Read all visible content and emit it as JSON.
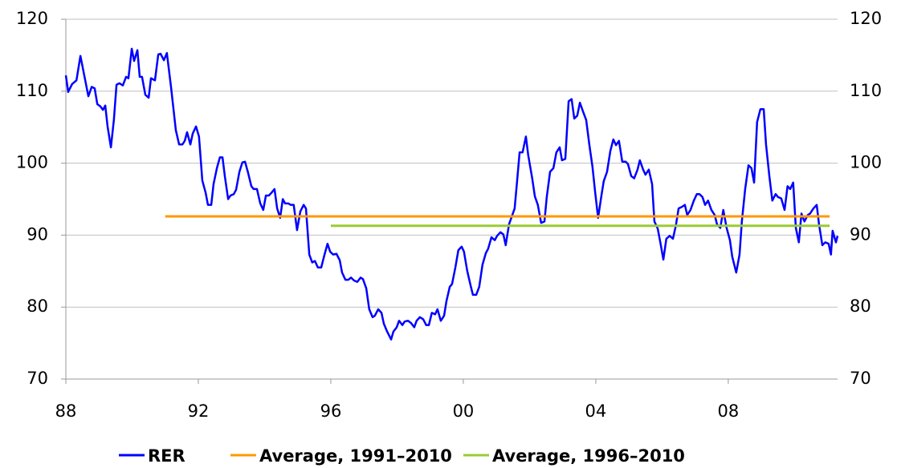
{
  "chart_data": {
    "type": "line",
    "xlim": [
      1988,
      2011.3
    ],
    "xticks": [
      {
        "value": 1988,
        "label": "88"
      },
      {
        "value": 1992,
        "label": "92"
      },
      {
        "value": 1996,
        "label": "96"
      },
      {
        "value": 2000,
        "label": "00"
      },
      {
        "value": 2004,
        "label": "04"
      },
      {
        "value": 2008,
        "label": "08"
      }
    ],
    "ylim": [
      70,
      120
    ],
    "yticks": [
      70,
      80,
      90,
      100,
      110,
      120
    ],
    "y2lim": [
      70,
      120
    ],
    "y2ticks": [
      70,
      80,
      90,
      100,
      110,
      120
    ],
    "grid": true,
    "legend": "bottom",
    "series": [
      {
        "name": "RER",
        "color": "#0000ff",
        "x": [
          1988.0,
          1988.07,
          1988.19,
          1988.32,
          1988.44,
          1988.56,
          1988.68,
          1988.78,
          1988.87,
          1988.95,
          1989.04,
          1989.12,
          1989.19,
          1989.26,
          1989.36,
          1989.45,
          1989.53,
          1989.62,
          1989.72,
          1989.82,
          1989.89,
          1989.99,
          1990.06,
          1990.16,
          1990.23,
          1990.3,
          1990.4,
          1990.5,
          1990.57,
          1990.69,
          1990.79,
          1990.86,
          1990.96,
          1991.05,
          1991.18,
          1991.32,
          1991.42,
          1991.52,
          1991.59,
          1991.66,
          1991.76,
          1991.83,
          1991.93,
          1992.02,
          1992.12,
          1992.22,
          1992.29,
          1992.39,
          1992.46,
          1992.56,
          1992.65,
          1992.73,
          1992.8,
          1992.9,
          1992.97,
          1993.07,
          1993.14,
          1993.24,
          1993.33,
          1993.41,
          1993.5,
          1993.6,
          1993.67,
          1993.77,
          1993.87,
          1993.96,
          1994.04,
          1994.13,
          1994.21,
          1994.3,
          1994.38,
          1994.47,
          1994.55,
          1994.62,
          1994.72,
          1994.79,
          1994.88,
          1994.98,
          1995.08,
          1995.18,
          1995.25,
          1995.35,
          1995.44,
          1995.52,
          1995.61,
          1995.71,
          1995.81,
          1995.9,
          1995.98,
          1996.07,
          1996.17,
          1996.27,
          1996.34,
          1996.44,
          1996.53,
          1996.61,
          1996.7,
          1996.8,
          1996.9,
          1996.97,
          1997.07,
          1997.16,
          1997.26,
          1997.33,
          1997.43,
          1997.53,
          1997.6,
          1997.7,
          1997.82,
          1997.89,
          1997.99,
          1998.06,
          1998.16,
          1998.23,
          1998.33,
          1998.42,
          1998.52,
          1998.59,
          1998.69,
          1998.79,
          1998.88,
          1998.96,
          1999.05,
          1999.15,
          1999.22,
          1999.32,
          1999.42,
          1999.49,
          1999.59,
          1999.66,
          1999.76,
          1999.85,
          1999.95,
          2000.02,
          2000.12,
          2000.22,
          2000.29,
          2000.39,
          2000.48,
          2000.58,
          2000.68,
          2000.75,
          2000.85,
          2000.95,
          2001.02,
          2001.12,
          2001.21,
          2001.28,
          2001.38,
          2001.45,
          2001.55,
          2001.62,
          2001.7,
          2001.79,
          2001.89,
          2001.96,
          2002.08,
          2002.16,
          2002.25,
          2002.35,
          2002.45,
          2002.52,
          2002.62,
          2002.72,
          2002.81,
          2002.91,
          2002.98,
          2003.08,
          2003.18,
          2003.27,
          2003.35,
          2003.44,
          2003.52,
          2003.62,
          2003.71,
          2003.81,
          2003.9,
          2003.98,
          2004.07,
          2004.17,
          2004.24,
          2004.34,
          2004.44,
          2004.53,
          2004.61,
          2004.7,
          2004.8,
          2004.9,
          2004.97,
          2005.07,
          2005.16,
          2005.26,
          2005.33,
          2005.43,
          2005.5,
          2005.6,
          2005.7,
          2005.77,
          2005.87,
          2005.96,
          2006.04,
          2006.13,
          2006.23,
          2006.33,
          2006.42,
          2006.5,
          2006.59,
          2006.69,
          2006.76,
          2006.86,
          2006.96,
          2007.05,
          2007.13,
          2007.22,
          2007.3,
          2007.39,
          2007.49,
          2007.59,
          2007.66,
          2007.76,
          2007.85,
          2007.95,
          2008.05,
          2008.12,
          2008.24,
          2008.34,
          2008.41,
          2008.51,
          2008.61,
          2008.7,
          2008.78,
          2008.87,
          2008.97,
          2009.07,
          2009.14,
          2009.24,
          2009.33,
          2009.43,
          2009.5,
          2009.6,
          2009.7,
          2009.79,
          2009.87,
          2009.96,
          2010.04,
          2010.13,
          2010.21,
          2010.3,
          2010.4,
          2010.47,
          2010.57,
          2010.67,
          2010.74,
          2010.84,
          2010.93,
          2011.03,
          2011.1,
          2011.15,
          2011.25,
          2011.3
        ],
        "values": [
          112.2,
          109.9,
          111.0,
          111.5,
          114.9,
          112.1,
          109.3,
          110.6,
          110.4,
          108.2,
          107.9,
          107.4,
          108.0,
          105.1,
          102.2,
          106.0,
          110.9,
          111.1,
          110.8,
          112.0,
          111.8,
          115.9,
          114.2,
          115.7,
          112.0,
          112.0,
          109.5,
          109.1,
          111.8,
          111.5,
          115.1,
          115.2,
          114.3,
          115.3,
          110.4,
          104.6,
          102.6,
          102.6,
          103.1,
          104.3,
          102.6,
          104.1,
          105.1,
          103.7,
          97.6,
          95.9,
          94.2,
          94.2,
          97.1,
          99.3,
          100.8,
          100.8,
          98.2,
          95.0,
          95.5,
          95.7,
          96.3,
          98.8,
          100.1,
          100.2,
          98.7,
          96.8,
          96.4,
          96.4,
          94.4,
          93.5,
          95.5,
          95.5,
          95.9,
          96.4,
          93.7,
          92.4,
          95.0,
          94.4,
          94.4,
          94.2,
          94.2,
          90.7,
          93.3,
          94.2,
          93.7,
          87.3,
          86.2,
          86.4,
          85.5,
          85.5,
          87.3,
          88.8,
          87.7,
          87.3,
          87.4,
          86.5,
          84.8,
          83.8,
          83.8,
          84.1,
          83.7,
          83.5,
          84.1,
          83.9,
          82.6,
          79.7,
          78.6,
          78.8,
          79.7,
          79.2,
          77.7,
          76.6,
          75.5,
          76.6,
          77.2,
          78.1,
          77.5,
          78.0,
          78.1,
          77.8,
          77.2,
          78.1,
          78.6,
          78.3,
          77.5,
          77.5,
          79.2,
          79.0,
          79.7,
          78.1,
          78.8,
          80.8,
          82.8,
          83.2,
          85.5,
          87.9,
          88.4,
          87.7,
          85.0,
          83.0,
          81.7,
          81.7,
          82.8,
          85.9,
          87.5,
          88.1,
          89.7,
          89.3,
          89.9,
          90.4,
          90.1,
          88.6,
          91.5,
          92.4,
          93.7,
          97.3,
          101.5,
          101.5,
          103.7,
          101.1,
          97.9,
          95.4,
          94.2,
          91.7,
          91.9,
          95.3,
          98.8,
          99.3,
          101.5,
          102.2,
          100.4,
          100.6,
          108.6,
          108.9,
          106.2,
          106.6,
          108.4,
          107.1,
          106.0,
          102.4,
          99.5,
          96.0,
          92.4,
          95.5,
          97.5,
          98.8,
          101.7,
          103.3,
          102.5,
          103.1,
          100.2,
          100.2,
          99.9,
          98.2,
          97.9,
          99.1,
          100.4,
          99.1,
          98.4,
          99.1,
          97.1,
          91.9,
          90.9,
          88.7,
          86.6,
          89.5,
          89.9,
          89.5,
          91.4,
          93.7,
          93.9,
          94.2,
          92.8,
          93.5,
          94.8,
          95.7,
          95.7,
          95.3,
          94.2,
          94.8,
          93.5,
          92.8,
          91.5,
          91.0,
          93.5,
          91.0,
          89.3,
          87.0,
          84.8,
          87.3,
          91.9,
          96.4,
          99.7,
          99.3,
          97.3,
          105.7,
          107.5,
          107.5,
          102.6,
          98.2,
          94.8,
          95.7,
          95.3,
          95.1,
          93.5,
          96.8,
          96.4,
          97.3,
          91.0,
          89.0,
          93.0,
          91.9,
          92.8,
          93.0,
          93.7,
          94.2,
          91.5,
          88.6,
          89.0,
          88.8,
          87.3,
          90.6,
          89.0,
          89.9
        ]
      },
      {
        "name": "Average, 1991–2010",
        "color": "#ff9900",
        "x": [
          1991.0,
          2011.06
        ],
        "values": [
          92.6,
          92.6
        ]
      },
      {
        "name": "Average, 1996–2010",
        "color": "#99cc33",
        "x": [
          1996.0,
          2011.06
        ],
        "values": [
          91.3,
          91.3
        ]
      }
    ]
  }
}
